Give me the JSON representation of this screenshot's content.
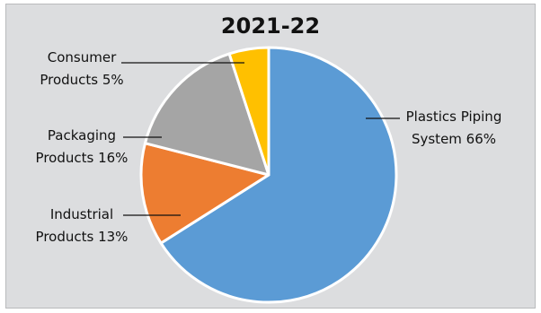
{
  "chart_data": {
    "type": "pie",
    "title": "2021-22",
    "slices": [
      {
        "label_lines": [
          "Plastics Piping",
          "System 66%"
        ],
        "value": 66,
        "color": "#5b9bd5"
      },
      {
        "label_lines": [
          "Industrial",
          "Products 13%"
        ],
        "value": 13,
        "color": "#ed7d31"
      },
      {
        "label_lines": [
          "Packaging",
          "Products 16%"
        ],
        "value": 16,
        "color": "#a5a5a5"
      },
      {
        "label_lines": [
          "Consumer",
          "Products 5%"
        ],
        "value": 5,
        "color": "#ffc000"
      }
    ]
  }
}
